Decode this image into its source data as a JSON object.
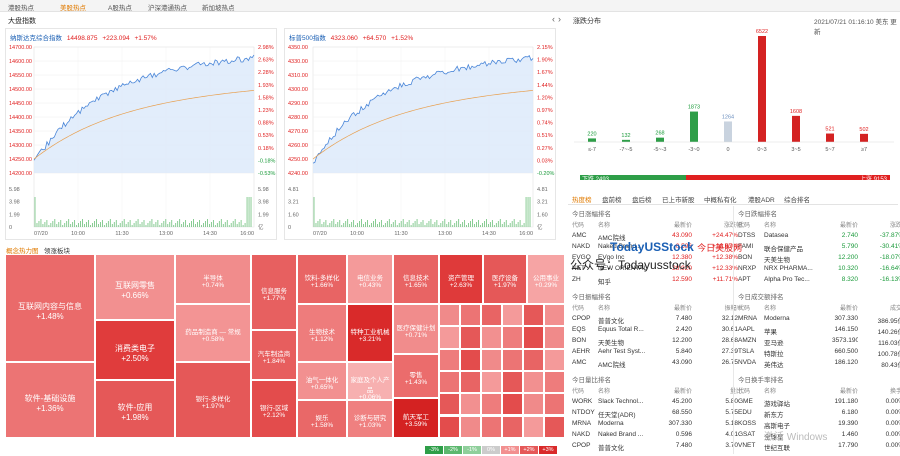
{
  "nav": [
    "港股热点",
    "美股热点",
    "A股热点",
    "沪深港通热点",
    "新加坡热点"
  ],
  "nav_active": 1,
  "market_title": "大盘指数",
  "nasdaq": {
    "name": "纳斯达克综合指数",
    "value": "14498.875",
    "change": "+223.094",
    "pct": "+1.57%",
    "yticks": [
      "14700.00",
      "14600.00",
      "14550.00",
      "14500.00",
      "14450.00",
      "14400.00",
      "14350.00",
      "14300.00",
      "14250.00",
      "14200.00"
    ],
    "pticks": [
      "2.98%",
      "2.63%",
      "2.28%",
      "1.93%",
      "1.58%",
      "1.23%",
      "0.88%",
      "0.53%",
      "0.18%",
      "-0.18%",
      "-0.53%"
    ],
    "vticks": [
      "5.98",
      "3.98",
      "1.99",
      "0"
    ],
    "vticks_r": [
      "5.98",
      "3.98",
      "1.99",
      "亿"
    ],
    "xticks": [
      "07/20",
      "10:00",
      "11:30",
      "13:00",
      "14:30",
      "16:00"
    ]
  },
  "sp500": {
    "name": "标普500指数",
    "value": "4323.060",
    "change": "+64.570",
    "pct": "+1.52%",
    "yticks": [
      "4350.00",
      "4330.00",
      "4310.00",
      "4300.00",
      "4290.00",
      "4280.00",
      "4270.00",
      "4260.00",
      "4250.00",
      "4240.00"
    ],
    "pticks": [
      "2.15%",
      "1.90%",
      "1.67%",
      "1.44%",
      "1.20%",
      "0.97%",
      "0.74%",
      "0.51%",
      "0.27%",
      "0.03%",
      "-0.20%"
    ],
    "vticks": [
      "4.81",
      "3.21",
      "1.60",
      "0"
    ],
    "vticks_r": [
      "4.81",
      "3.21",
      "1.60",
      "亿"
    ],
    "xticks": [
      "07/20",
      "10:00",
      "11:30",
      "13:00",
      "14:30",
      "16:00"
    ]
  },
  "heatmap_tabs": [
    "概念热力图",
    "领涨板块"
  ],
  "heatmap": [
    {
      "n": "互联网内容与信息",
      "p": "+1.48%",
      "c": "#ea6a6a"
    },
    {
      "n": "软件-基础设施",
      "p": "+1.36%",
      "c": "#ec7474"
    },
    {
      "n": "互联网零售",
      "p": "+0.66%",
      "c": "#f29090"
    },
    {
      "n": "消费类电子",
      "p": "+2.50%",
      "c": "#e03c3c"
    },
    {
      "n": "软件-应用",
      "p": "+1.98%",
      "c": "#e55858"
    },
    {
      "n": "半导体",
      "p": "+0.74%",
      "c": "#f18c8c"
    },
    {
      "n": "药品制造商 — 常规",
      "p": "+0.58%",
      "c": "#f39494"
    },
    {
      "n": "银行-多样化",
      "p": "+1.97%",
      "c": "#e55858"
    },
    {
      "n": "信息服务",
      "p": "+1.77%",
      "c": "#e76060"
    },
    {
      "n": "汽车制造商",
      "p": "+1.84%",
      "c": "#e75e5e"
    },
    {
      "n": "银行-区域",
      "p": "+2.12%",
      "c": "#e34c4c"
    },
    {
      "n": "饮料-多样化",
      "p": "+1.66%",
      "c": "#e86464"
    },
    {
      "n": "生物技术",
      "p": "+1.12%",
      "c": "#ee7c7c"
    },
    {
      "n": "油气一体化",
      "p": "+0.65%",
      "c": "#f29090"
    },
    {
      "n": "娱乐",
      "p": "+1.58%",
      "c": "#e96868"
    },
    {
      "n": "电信业务",
      "p": "+0.43%",
      "c": "#f49a9a"
    },
    {
      "n": "特种工业机械",
      "p": "+3.21%",
      "c": "#d92a2a"
    },
    {
      "n": "家庭及个人产品",
      "p": "+0.06%",
      "c": "#f7b0b0"
    },
    {
      "n": "诊断与研究",
      "p": "+1.03%",
      "c": "#ef8080"
    },
    {
      "n": "信息技术",
      "p": "+1.65%",
      "c": "#e86464"
    },
    {
      "n": "医疗保健计划",
      "p": "+0.71%",
      "c": "#f18c8c"
    },
    {
      "n": "零售",
      "p": "+1.43%",
      "c": "#eb6c6c"
    },
    {
      "n": "航天军工",
      "p": "+3.59%",
      "c": "#d42222"
    },
    {
      "n": "资产管理",
      "p": "+2.63%",
      "c": "#df3a3a"
    },
    {
      "n": "医疗设备",
      "p": "+1.97%",
      "c": "#e55858"
    },
    {
      "n": "公用事业",
      "p": "+0.29%",
      "c": "#f6a4a4"
    }
  ],
  "legend": [
    "-3%",
    "-2%",
    "-1%",
    "0%",
    "+1%",
    "+2%",
    "+3%"
  ],
  "dist": {
    "title": "涨跌分布",
    "datetime": "2021/07/21 01:16:10 美东 更新",
    "bins": [
      {
        "label": "≤-7",
        "count": 220,
        "side": "down"
      },
      {
        "label": "-7~-5",
        "count": 132,
        "side": "down"
      },
      {
        "label": "-5~-3",
        "count": 268,
        "side": "down"
      },
      {
        "label": "-3~0",
        "count": 1873,
        "side": "down"
      },
      {
        "label": "0",
        "count": 1264,
        "side": "flat"
      },
      {
        "label": "0~3",
        "count": 6522,
        "side": "up"
      },
      {
        "label": "3~5",
        "count": 1608,
        "side": "up"
      },
      {
        "label": "5~7",
        "count": 521,
        "side": "up"
      },
      {
        "label": "≥7",
        "count": 502,
        "side": "up"
      }
    ],
    "down_label": "下跌 2493",
    "up_label": "上涨 9153"
  },
  "rank_tabs": [
    "热度榜",
    "盘前榜",
    "盘后榜",
    "已上市新股",
    "中概私有化",
    "港股ADR",
    "综合排名"
  ],
  "tables": [
    {
      "title": "今日涨幅排名",
      "h": [
        "代码",
        "名称",
        "最新价",
        "涨跌幅"
      ],
      "rows": [
        [
          "AMC",
          "AMC院线",
          "43.090",
          "+24.47%"
        ],
        [
          "NAKD",
          "Naked Brand...",
          "0.596",
          "+18.67%"
        ],
        [
          "EVGO",
          "EVgo Inc",
          "12.380",
          "+12.38%"
        ],
        [
          "NET",
          "NEW ORIENTAL",
          "28.920",
          "+12.33%"
        ],
        [
          "ZH",
          "知乎",
          "12.590",
          "+11.71%"
        ]
      ]
    },
    {
      "title": "今日跌幅排名",
      "h": [
        "代码",
        "名称",
        "最新价",
        "涨跌幅"
      ],
      "rows": [
        [
          "DTSS",
          "Datasea",
          "2.740",
          "-37.87%"
        ],
        [
          "FAMI",
          "联合保健产品",
          "5.790",
          "-30.41%"
        ],
        [
          "BON",
          "天美生物",
          "12.200",
          "-18.07%"
        ],
        [
          "NRXP",
          "NRX PHARMA...",
          "10.320",
          "-16.64%"
        ],
        [
          "APT",
          "Alpha Pro Tec...",
          "8.320",
          "-16.13%"
        ]
      ]
    },
    {
      "title": "今日振幅排名",
      "h": [
        "代码",
        "名称",
        "最新价",
        "振幅%"
      ],
      "rows": [
        [
          "CPOP",
          "普普文化",
          "7.480",
          "32.12"
        ],
        [
          "EQS",
          "Equus Total R...",
          "2.420",
          "30.61"
        ],
        [
          "BON",
          "天美生物",
          "12.200",
          "28.68"
        ],
        [
          "AEHR",
          "Aehr Test Syst...",
          "5.840",
          "27.39"
        ],
        [
          "AMC",
          "AMC院线",
          "43.090",
          "26.75"
        ]
      ]
    },
    {
      "title": "今日成交额排名",
      "h": [
        "代码",
        "名称",
        "最新价",
        "成交额"
      ],
      "rows": [
        [
          "MRNA",
          "Moderna",
          "307.330",
          "386.95亿"
        ],
        [
          "AAPL",
          "苹果",
          "146.150",
          "140.26亿"
        ],
        [
          "AMZN",
          "亚马逊",
          "3573.190",
          "116.03亿"
        ],
        [
          "TSLA",
          "特斯拉",
          "660.500",
          "100.78亿"
        ],
        [
          "NVDA",
          "英伟达",
          "186.120",
          "80.43亿"
        ]
      ]
    },
    {
      "title": "今日量比排名",
      "h": [
        "代码",
        "名称",
        "最新价",
        "量比"
      ],
      "rows": [
        [
          "WORK",
          "Slack Technol...",
          "45.200",
          "5.80"
        ],
        [
          "NTDOY",
          "任天堂(ADR)",
          "68.550",
          "5.75"
        ],
        [
          "MRNA",
          "Moderna",
          "307.330",
          "5.18"
        ],
        [
          "NAKD",
          "Naked Brand ...",
          "0.596",
          "4.01"
        ],
        [
          "CPOP",
          "普普文化",
          "7.480",
          "3.70"
        ]
      ]
    },
    {
      "title": "今日换手率排名",
      "h": [
        "代码",
        "名称",
        "最新价",
        "换手率"
      ],
      "rows": [
        [
          "GME",
          "游戏驿站",
          "191.180",
          "0.00%"
        ],
        [
          "EDU",
          "新东方",
          "6.180",
          "0.00%"
        ],
        [
          "KOSS",
          "高斯电子",
          "19.390",
          "0.00%"
        ],
        [
          "GSAT",
          "全球星",
          "1.460",
          "0.00%"
        ],
        [
          "VNET",
          "世纪互联",
          "17.790",
          "0.00%"
        ]
      ]
    }
  ],
  "watermark": {
    "brand": "TodayUSStock",
    "cn": "今日美股网",
    "gzh": "公众号：Todayusstock",
    "win": "激活 Windows"
  },
  "colors": {
    "up": "#e02020",
    "down": "#1a9a3a",
    "accent": "#e07a00"
  }
}
